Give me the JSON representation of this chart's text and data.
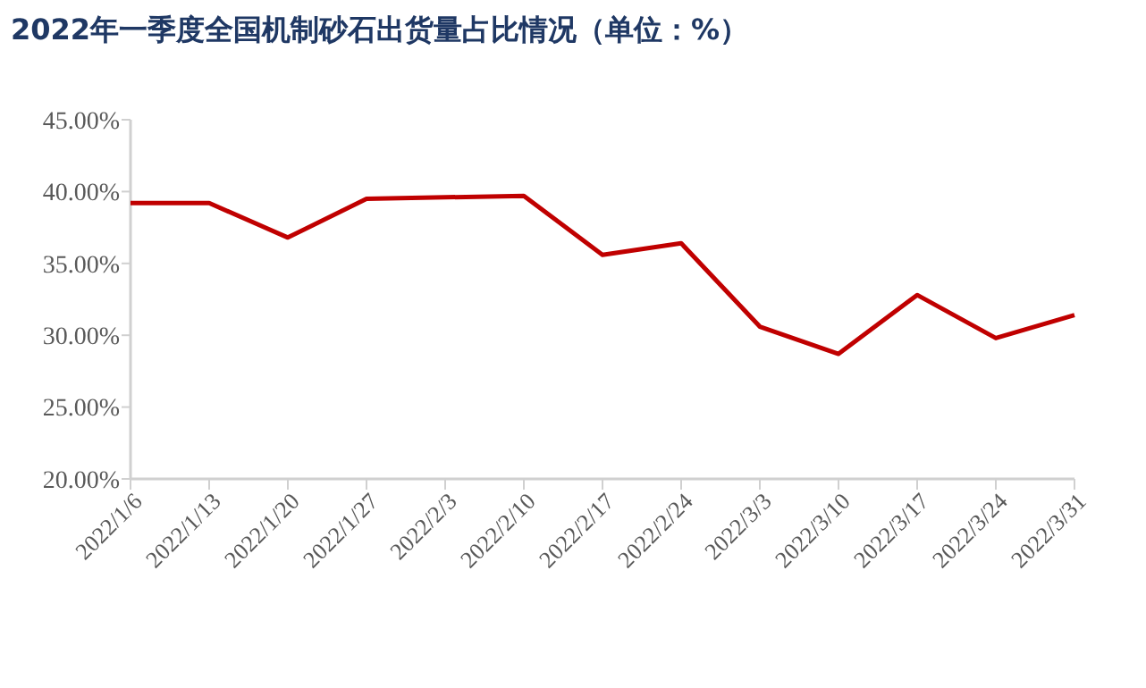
{
  "chart_data": {
    "type": "line",
    "title": "2022年一季度全国机制砂石出货量占比情况（单位：%）",
    "categories": [
      "2022/1/6",
      "2022/1/13",
      "2022/1/20",
      "2022/1/27",
      "2022/2/3",
      "2022/2/10",
      "2022/2/17",
      "2022/2/24",
      "2022/3/3",
      "2022/3/10",
      "2022/3/17",
      "2022/3/24",
      "2022/3/31"
    ],
    "series": [
      {
        "color": "#c00000",
        "values": [
          39.2,
          39.2,
          36.8,
          39.5,
          39.6,
          39.7,
          35.6,
          36.4,
          30.6,
          28.7,
          32.8,
          29.8,
          31.4
        ]
      }
    ],
    "ylim": [
      20,
      45
    ],
    "yticks": [
      {
        "value": 20,
        "label": "20.00%"
      },
      {
        "value": 25,
        "label": "25.00%"
      },
      {
        "value": 30,
        "label": "30.00%"
      },
      {
        "value": 35,
        "label": "35.00%"
      },
      {
        "value": 40,
        "label": "40.00%"
      },
      {
        "value": 45,
        "label": "45.00%"
      }
    ],
    "grid": false,
    "marker": "none",
    "line_style": "solid"
  }
}
